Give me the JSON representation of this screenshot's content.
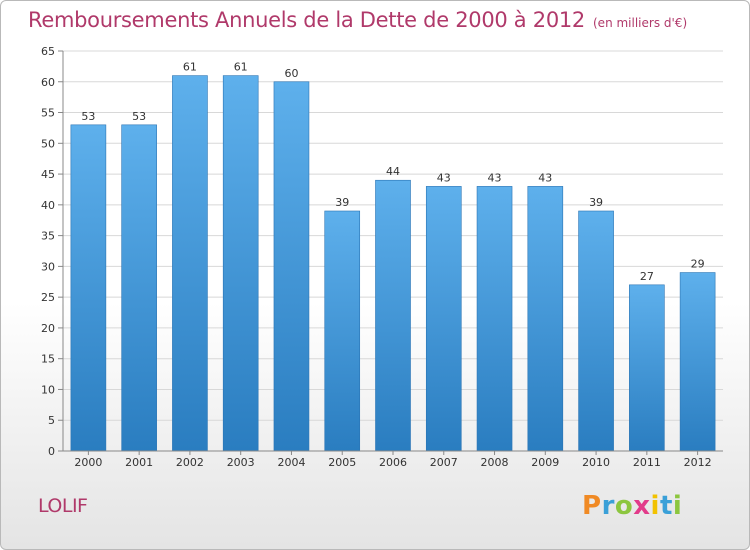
{
  "title": "Remboursements Annuels de la Dette de 2000 à 2012",
  "subtitle": "(en milliers d'€)",
  "commune": "LOLIF",
  "brand": {
    "letters": [
      "P",
      "r",
      "o",
      "x",
      "i",
      "t",
      "i"
    ],
    "colors": [
      "#f08a24",
      "#3aa0d8",
      "#8cc63f",
      "#e23b8a",
      "#f2c200",
      "#3aa0d8",
      "#8cc63f"
    ]
  },
  "colors": {
    "title": "#b0396a",
    "bar_light": "#5eb0ec",
    "bar_dark": "#2a7dc0",
    "grid": "#d8d8d8",
    "axis": "#888888",
    "text": "#333333"
  },
  "chart_data": {
    "type": "bar",
    "title": "Remboursements Annuels de la Dette de 2000 à 2012",
    "subtitle": "(en milliers d'€)",
    "categories": [
      "2000",
      "2001",
      "2002",
      "2003",
      "2004",
      "2005",
      "2006",
      "2007",
      "2008",
      "2009",
      "2010",
      "2011",
      "2012"
    ],
    "values": [
      53,
      53,
      61,
      61,
      60,
      39,
      44,
      43,
      43,
      43,
      39,
      27,
      29
    ],
    "data_labels": [
      "53",
      "53",
      "61",
      "61",
      "60",
      "39",
      "44",
      "43",
      "43",
      "43",
      "39",
      "27",
      "29"
    ],
    "ylim": [
      0,
      65
    ],
    "yticks": [
      0,
      5,
      10,
      15,
      20,
      25,
      30,
      35,
      40,
      45,
      50,
      55,
      60,
      65
    ],
    "grid": true,
    "xlabel": "",
    "ylabel": ""
  }
}
